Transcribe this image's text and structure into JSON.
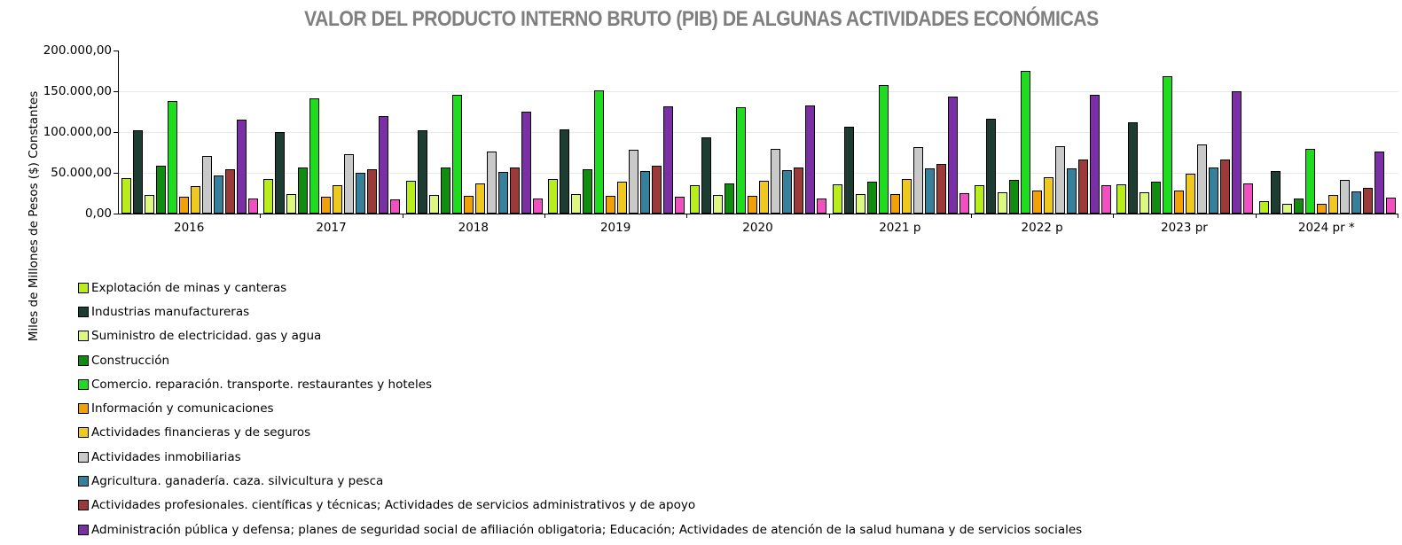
{
  "chart_data": {
    "type": "bar",
    "title": "VALOR DEL PRODUCTO INTERNO BRUTO (PIB) DE ALGUNAS ACTIVIDADES ECONÓMICAS",
    "ylabel": "Miles de Millones de Pesos ($) Constantes",
    "xlabel": "",
    "ylim": [
      0,
      200000
    ],
    "ytick_labels": [
      "200.000,00",
      "150.000,00",
      "100.000,00",
      "50.000,00",
      "0,00"
    ],
    "grid": "horizontal",
    "legend_position": "bottom-left",
    "categories": [
      "2016",
      "2017",
      "2018",
      "2019",
      "2020",
      "2021 p",
      "2022 p",
      "2023 pr",
      "2024 pr *"
    ],
    "series": [
      {
        "name": "Explotación de minas y canteras",
        "color": "#b9ee1c",
        "legend_visible": true,
        "values": [
          43000,
          42000,
          40500,
          42000,
          35000,
          35500,
          35000,
          36000,
          15000
        ]
      },
      {
        "name": "Industrias manufactureras",
        "color": "#1d3d33",
        "legend_visible": true,
        "values": [
          102500,
          100000,
          102000,
          103500,
          93500,
          106500,
          116000,
          112000,
          52500
        ]
      },
      {
        "name": "Suministro de electricidad. gas y agua",
        "color": "#ddf87e",
        "legend_visible": true,
        "values": [
          22500,
          23500,
          23000,
          24000,
          23000,
          24000,
          26500,
          26500,
          12000
        ]
      },
      {
        "name": "Construcción",
        "color": "#118c11",
        "legend_visible": true,
        "values": [
          59000,
          56500,
          56500,
          54000,
          37000,
          39500,
          41500,
          39000,
          19000
        ]
      },
      {
        "name": "Comercio. reparación. transporte. restaurantes y hoteles",
        "color": "#1edc1e",
        "legend_visible": true,
        "values": [
          138500,
          141000,
          145500,
          151000,
          130500,
          157500,
          174500,
          168500,
          79500
        ]
      },
      {
        "name": "Información y comunicaciones",
        "color": "#f2a007",
        "legend_visible": true,
        "values": [
          21000,
          20500,
          21500,
          21500,
          22000,
          24000,
          28500,
          28500,
          12000
        ]
      },
      {
        "name": "Actividades financieras y de seguros",
        "color": "#efc91f",
        "legend_visible": true,
        "values": [
          34000,
          35000,
          37000,
          39000,
          40500,
          42000,
          45000,
          48500,
          22500
        ]
      },
      {
        "name": "Actividades inmobiliarias",
        "color": "#c9c9c9",
        "legend_visible": true,
        "values": [
          71000,
          72500,
          76000,
          78000,
          79500,
          81500,
          83000,
          84500,
          41500
        ]
      },
      {
        "name": "Agricultura. ganadería. caza. silvicultura y pesca",
        "color": "#36809b",
        "legend_visible": true,
        "values": [
          47000,
          50500,
          51000,
          52000,
          53000,
          55500,
          55000,
          56000,
          27500
        ]
      },
      {
        "name": "Actividades profesionales. científicas y técnicas; Actividades de servicios administrativos y de apoyo",
        "color": "#9c3a3a",
        "legend_visible": true,
        "values": [
          54500,
          54500,
          57000,
          58500,
          56000,
          61000,
          66500,
          66500,
          31000
        ]
      },
      {
        "name": "Administración pública y defensa; planes de seguridad social de afiliación obligatoria; Educación; Actividades de atención de la salud humana y de servicios sociales",
        "color": "#7b2fa5",
        "legend_visible": true,
        "values": [
          115000,
          119500,
          125500,
          132000,
          132500,
          144000,
          145500,
          150500,
          76000
        ]
      },
      {
        "name": "",
        "color": "#f24fc3",
        "legend_visible": false,
        "values": [
          18000,
          17500,
          19000,
          20500,
          18500,
          25000,
          35000,
          36500,
          20000
        ]
      }
    ]
  }
}
